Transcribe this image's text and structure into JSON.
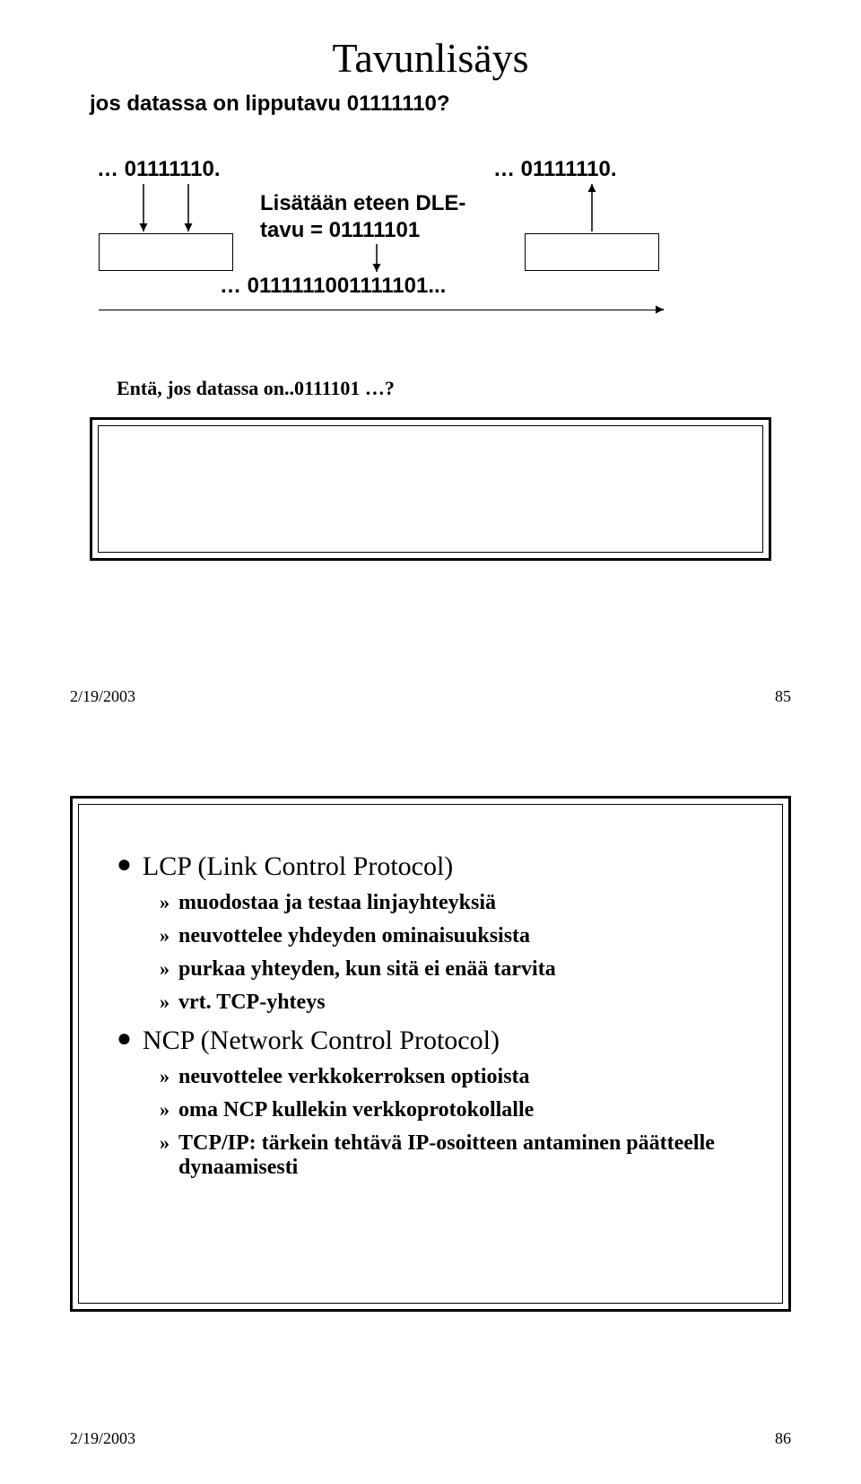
{
  "slide1": {
    "title": "Tavunlisäys",
    "subtitle": "jos datassa on  lipputavu 01111110?",
    "seq_left_label": "… 01111110.",
    "seq_right_label": "… 01111110.",
    "insert_label_1": "Lisätään  eteen DLE-",
    "insert_label_2": "tavu = 01111101",
    "result_seq": "… 0111111001111101...",
    "question": "Entä, jos  datassa on..0111101 …?",
    "footer_date": "2/19/2003",
    "footer_page": "85"
  },
  "slide2": {
    "bullets": [
      {
        "text": "LCP (Link Control Protocol)",
        "subs": [
          "muodostaa ja testaa linjayhteyksiä",
          "neuvottelee yhdeyden ominaisuuksista",
          "purkaa yhteyden, kun sitä ei enää tarvita",
          "vrt. TCP-yhteys"
        ]
      },
      {
        "text": "NCP (Network Control Protocol)",
        "subs": [
          "neuvottelee verkkokerroksen optioista",
          "oma NCP kullekin verkkoprotokollalle",
          "TCP/IP: tärkein tehtävä IP-osoitteen antaminen päätteelle dynaamisesti"
        ]
      }
    ],
    "footer_date": "2/19/2003",
    "footer_page": "86"
  }
}
